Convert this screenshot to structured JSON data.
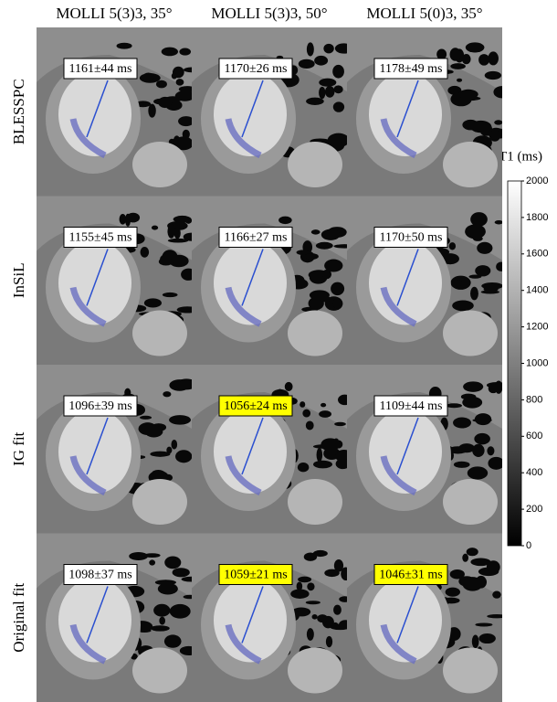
{
  "columns": [
    "MOLLI 5(3)3, 35°",
    "MOLLI 5(3)3, 50°",
    "MOLLI 5(0)3, 35°"
  ],
  "rows": [
    {
      "label": "BLESSPC",
      "cells": [
        {
          "text": "1161±44 ms",
          "highlight": false
        },
        {
          "text": "1170±26 ms",
          "highlight": false
        },
        {
          "text": "1178±49 ms",
          "highlight": false
        }
      ]
    },
    {
      "label": "InSiL",
      "cells": [
        {
          "text": "1155±45 ms",
          "highlight": false
        },
        {
          "text": "1166±27 ms",
          "highlight": false
        },
        {
          "text": "1170±50 ms",
          "highlight": false
        }
      ]
    },
    {
      "label": "IG fit",
      "cells": [
        {
          "text": "1096±39 ms",
          "highlight": false
        },
        {
          "text": "1056±24 ms",
          "highlight": true
        },
        {
          "text": "1109±44 ms",
          "highlight": false
        }
      ]
    },
    {
      "label": "Original fit",
      "cells": [
        {
          "text": "1098±37 ms",
          "highlight": false
        },
        {
          "text": "1059±21 ms",
          "highlight": true
        },
        {
          "text": "1046±31 ms",
          "highlight": true
        }
      ]
    }
  ],
  "colorbar": {
    "title": "T1 (ms)",
    "lim": [
      0,
      2000
    ],
    "ticks": [
      0,
      200,
      400,
      600,
      800,
      1000,
      1200,
      1400,
      1600,
      1800,
      2000
    ]
  }
}
